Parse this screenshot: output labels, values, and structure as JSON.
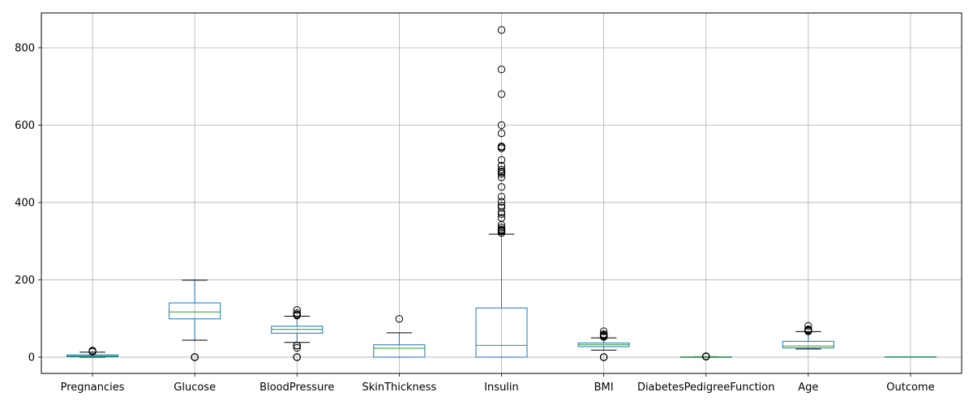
{
  "chart_data": {
    "type": "box",
    "title": "",
    "xlabel": "",
    "ylabel": "",
    "ylim": [
      -42,
      890
    ],
    "grid": true,
    "legend": "none",
    "yticks": [
      0,
      200,
      400,
      600,
      800
    ],
    "colors": {
      "box": "#1f77b4",
      "median": "#2ca02c",
      "flier": "#000000",
      "grid": "#b0b0b0"
    },
    "categories": [
      "Pregnancies",
      "Glucose",
      "BloodPressure",
      "SkinThickness",
      "Insulin",
      "BMI",
      "DiabetesPedigreeFunction",
      "Age",
      "Outcome"
    ],
    "boxes": [
      {
        "name": "Pregnancies",
        "whislo": 0,
        "q1": 1,
        "med": 3,
        "q3": 6,
        "whishi": 13,
        "fliers": [
          14,
          15,
          17
        ]
      },
      {
        "name": "Glucose",
        "whislo": 44,
        "q1": 99,
        "med": 117,
        "q3": 140.25,
        "whishi": 199,
        "fliers": [
          0,
          0,
          0,
          0,
          0
        ]
      },
      {
        "name": "BloodPressure",
        "whislo": 38,
        "q1": 62,
        "med": 72,
        "q3": 80,
        "whishi": 106,
        "fliers": [
          0,
          0,
          0,
          24,
          30,
          30,
          108,
          110,
          110,
          114,
          122
        ]
      },
      {
        "name": "SkinThickness",
        "whislo": 0,
        "q1": 0,
        "med": 23,
        "q3": 32,
        "whishi": 63,
        "fliers": [
          99
        ]
      },
      {
        "name": "Insulin",
        "whislo": 0,
        "q1": 0,
        "med": 30.5,
        "q3": 127.25,
        "whishi": 318,
        "fliers": [
          321,
          325,
          326,
          328,
          330,
          335,
          342,
          360,
          370,
          375,
          387,
          392,
          402,
          415,
          440,
          465,
          474,
          478,
          480,
          485,
          495,
          510,
          540,
          543,
          545,
          579,
          600,
          680,
          744,
          846
        ]
      },
      {
        "name": "BMI",
        "whislo": 18.2,
        "q1": 27.3,
        "med": 32,
        "q3": 36.6,
        "whishi": 50,
        "fliers": [
          0,
          0,
          0,
          0,
          52.3,
          53.2,
          55,
          57.3,
          59.4,
          67.1
        ]
      },
      {
        "name": "DiabetesPedigreeFunction",
        "whislo": 0.078,
        "q1": 0.24375,
        "med": 0.3725,
        "q3": 0.62625,
        "whishi": 1.191,
        "fliers": [
          1.39,
          1.73,
          2.1,
          2.42
        ]
      },
      {
        "name": "Age",
        "whislo": 21,
        "q1": 24,
        "med": 29,
        "q3": 41,
        "whishi": 66,
        "fliers": [
          67,
          68,
          69,
          70,
          72,
          81
        ]
      },
      {
        "name": "Outcome",
        "whislo": 0,
        "q1": 0,
        "med": 0,
        "q3": 1,
        "whishi": 1,
        "fliers": []
      }
    ]
  }
}
